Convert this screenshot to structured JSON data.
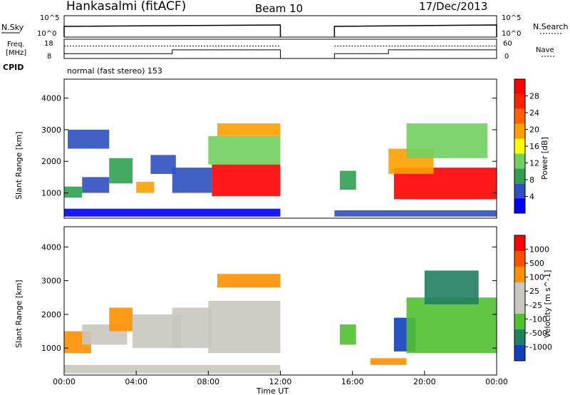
{
  "header": {
    "station": "Hankasalmi (fitACF)",
    "beam": "Beam 10",
    "date": "17/Dec/2013"
  },
  "noise_panel": {
    "left_label": "N.Sky",
    "right_label": "N.Search",
    "left_ticks": [
      "10^5",
      "10^0"
    ],
    "right_ticks": [
      "10^5",
      "10^0"
    ]
  },
  "freq_panel": {
    "left_label_1": "Freq.",
    "left_label_2": "[MHz]",
    "right_label": "Nave",
    "left_ticks": [
      "18",
      "8"
    ],
    "right_ticks": [
      "60",
      "0"
    ]
  },
  "cpid": {
    "label": "CPID",
    "text": "normal (fast stereo) 153"
  },
  "colors": {
    "power": [
      "#0000ff",
      "#2e50c0",
      "#30a050",
      "#70d060",
      "#ffff00",
      "#ffa000",
      "#ff6000",
      "#ff2000",
      "#ff0000"
    ],
    "velocity": [
      "#1040c0",
      "#208060",
      "#50c030",
      "#c8c8c0",
      "#c8c8c0",
      "#ff9000",
      "#ff5000",
      "#ff0000"
    ],
    "ground_scatter": "#c0c0b8"
  },
  "chart_data": [
    {
      "type": "line",
      "title": "Hankasalmi (fitACF)",
      "xlabel": "Time UT",
      "ylabel": "",
      "x": [
        "00:00",
        "04:00",
        "08:00",
        "12:00",
        "16:00",
        "20:00",
        "00:00"
      ],
      "series": [
        {
          "name": "N.Sky",
          "segments": [
            [
              0.0,
              12.0
            ],
            [
              15.0,
              24.0
            ]
          ]
        },
        {
          "name": "N.Search",
          "segments": [
            [
              0.0,
              12.0
            ],
            [
              15.0,
              24.0
            ]
          ]
        }
      ]
    },
    {
      "type": "line",
      "xlabel": "",
      "ylabel": "Freq. [MHz]",
      "ylim": [
        8,
        18
      ],
      "series": [
        {
          "name": "Freq.",
          "points": [
            [
              0.0,
              10.5
            ],
            [
              6.0,
              10.5
            ],
            [
              6.0,
              12.5
            ],
            [
              12.0,
              12.5
            ],
            [
              15.0,
              10.5
            ],
            [
              18.0,
              10.5
            ],
            [
              18.0,
              12.5
            ],
            [
              24.0,
              12.5
            ]
          ]
        },
        {
          "name": "Nave",
          "points": [
            [
              0.0,
              14.5
            ],
            [
              12.0,
              14.5
            ],
            [
              15.0,
              14.5
            ],
            [
              24.0,
              14.5
            ]
          ]
        }
      ]
    },
    {
      "type": "heatmap",
      "xlabel": "",
      "ylabel": "Slant Range [km]",
      "xlim": [
        0,
        24
      ],
      "ylim": [
        200,
        4600
      ],
      "yticks": [
        "1000",
        "2000",
        "3000",
        "4000"
      ],
      "colorbar_label": "Power [dB]",
      "colorbar_ticks": [
        "28",
        "24",
        "20",
        "16",
        "12",
        "8",
        "4"
      ],
      "regions": [
        {
          "t": [
            0.0,
            1.0
          ],
          "r": [
            850,
            1200
          ],
          "c": 2
        },
        {
          "t": [
            1.0,
            2.5
          ],
          "r": [
            1000,
            1500
          ],
          "c": 1
        },
        {
          "t": [
            2.5,
            3.8
          ],
          "r": [
            1300,
            2100
          ],
          "c": 2
        },
        {
          "t": [
            4.0,
            5.0
          ],
          "r": [
            1000,
            1350
          ],
          "c": 5
        },
        {
          "t": [
            4.8,
            6.2
          ],
          "r": [
            1600,
            2200
          ],
          "c": 1
        },
        {
          "t": [
            6.0,
            8.2
          ],
          "r": [
            1000,
            1800
          ],
          "c": 1
        },
        {
          "t": [
            8.2,
            12.0
          ],
          "r": [
            900,
            1900
          ],
          "c": 8
        },
        {
          "t": [
            8.0,
            12.0
          ],
          "r": [
            1900,
            2800
          ],
          "c": 3
        },
        {
          "t": [
            8.5,
            12.0
          ],
          "r": [
            2800,
            3200
          ],
          "c": 5
        },
        {
          "t": [
            0.2,
            2.5
          ],
          "r": [
            2400,
            3000
          ],
          "c": 1
        },
        {
          "t": [
            15.3,
            16.2
          ],
          "r": [
            1100,
            1700
          ],
          "c": 2
        },
        {
          "t": [
            18.3,
            24.0
          ],
          "r": [
            800,
            1800
          ],
          "c": 8
        },
        {
          "t": [
            18.0,
            20.5
          ],
          "r": [
            1600,
            2400
          ],
          "c": 5
        },
        {
          "t": [
            19.0,
            23.5
          ],
          "r": [
            2100,
            3200
          ],
          "c": 3
        },
        {
          "t": [
            0.0,
            12.0
          ],
          "r": [
            250,
            500
          ],
          "c": 0
        },
        {
          "t": [
            15.0,
            24.0
          ],
          "r": [
            250,
            450
          ],
          "c": 1
        }
      ]
    },
    {
      "type": "heatmap",
      "xlabel": "Time UT",
      "ylabel": "Slant Range [km]",
      "xlim": [
        0,
        24
      ],
      "ylim": [
        200,
        4600
      ],
      "yticks": [
        "1000",
        "2000",
        "3000",
        "4000"
      ],
      "xticks": [
        "00:00",
        "04:00",
        "08:00",
        "12:00",
        "16:00",
        "20:00",
        "00:00"
      ],
      "colorbar_label": "Velocity [m s^-1]",
      "colorbar_ticks": [
        "1000",
        "500",
        "100",
        "25",
        "-25",
        "-100",
        "-500",
        "-1000"
      ],
      "regions": [
        {
          "t": [
            0.0,
            1.5
          ],
          "r": [
            850,
            1500
          ],
          "c": 5
        },
        {
          "t": [
            1.0,
            3.5
          ],
          "r": [
            1100,
            1700
          ],
          "c": 3
        },
        {
          "t": [
            2.5,
            3.8
          ],
          "r": [
            1500,
            2200
          ],
          "c": 5
        },
        {
          "t": [
            3.8,
            6.5
          ],
          "r": [
            1000,
            2000
          ],
          "c": 3
        },
        {
          "t": [
            6.0,
            8.2
          ],
          "r": [
            1000,
            2200
          ],
          "c": 3
        },
        {
          "t": [
            8.0,
            12.0
          ],
          "r": [
            850,
            2400
          ],
          "c": 3
        },
        {
          "t": [
            8.5,
            12.0
          ],
          "r": [
            2800,
            3200
          ],
          "c": 5
        },
        {
          "t": [
            15.3,
            16.2
          ],
          "r": [
            1100,
            1700
          ],
          "c": 2
        },
        {
          "t": [
            18.3,
            19.5
          ],
          "r": [
            900,
            1900
          ],
          "c": 0
        },
        {
          "t": [
            19.0,
            24.0
          ],
          "r": [
            850,
            2500
          ],
          "c": 2
        },
        {
          "t": [
            20.0,
            23.0
          ],
          "r": [
            2300,
            3300
          ],
          "c": 1
        },
        {
          "t": [
            0.0,
            12.0
          ],
          "r": [
            250,
            500
          ],
          "c": 3
        },
        {
          "t": [
            17.0,
            19.0
          ],
          "r": [
            500,
            700
          ],
          "c": 5
        }
      ]
    }
  ]
}
